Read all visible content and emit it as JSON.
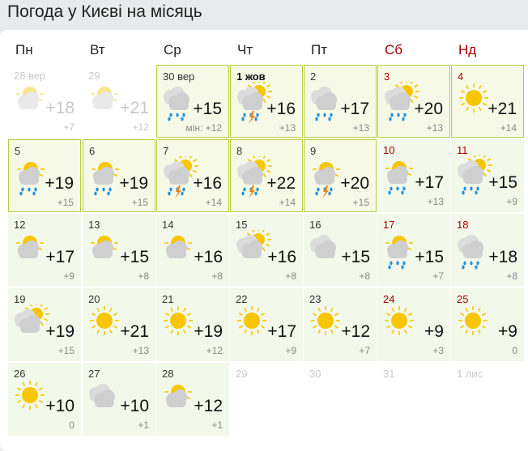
{
  "title": "Погода у Києві на місяць",
  "weekdays": [
    {
      "label": "Пн",
      "weekend": false
    },
    {
      "label": "Вт",
      "weekend": false
    },
    {
      "label": "Ср",
      "weekend": false
    },
    {
      "label": "Чт",
      "weekend": false
    },
    {
      "label": "Пт",
      "weekend": false
    },
    {
      "label": "Сб",
      "weekend": true
    },
    {
      "label": "Нд",
      "weekend": true
    }
  ],
  "colors": {
    "weekend": "#a60000",
    "highlight_border": "#b7cc3a",
    "sun": "#f7c600",
    "cloud": "#cfcfcf",
    "rain": "#1e90e0",
    "thunder": "#f08010"
  },
  "days": [
    {
      "date": "28 вер",
      "max": "+18",
      "min": "+7",
      "icon": "sun-top-cloud",
      "state": "past"
    },
    {
      "date": "29",
      "max": "+21",
      "min": "+12",
      "icon": "sun-top-cloud",
      "state": "past"
    },
    {
      "date": "30 вер",
      "max": "+15",
      "min": "мін: +12",
      "icon": "clouds-rain",
      "state": "hl"
    },
    {
      "date": "1 жов",
      "max": "+16",
      "min": "+13",
      "icon": "sun-right-clouds-rain-thunder",
      "state": "hl",
      "bold": true
    },
    {
      "date": "2",
      "max": "+17",
      "min": "+13",
      "icon": "clouds-rain",
      "state": "hl"
    },
    {
      "date": "3",
      "max": "+20",
      "min": "+13",
      "icon": "sun-right-clouds-rain",
      "state": "hl",
      "weekend": true
    },
    {
      "date": "4",
      "max": "+21",
      "min": "+14",
      "icon": "sun",
      "state": "hl",
      "weekend": true
    },
    {
      "date": "5",
      "max": "+19",
      "min": "+15",
      "icon": "sun-top-cloud-rain",
      "state": "hl"
    },
    {
      "date": "6",
      "max": "+19",
      "min": "+15",
      "icon": "sun-top-cloud-rain",
      "state": "hl"
    },
    {
      "date": "7",
      "max": "+16",
      "min": "+14",
      "icon": "sun-right-clouds-rain-thunder",
      "state": "hl"
    },
    {
      "date": "8",
      "max": "+22",
      "min": "+14",
      "icon": "sun-right-clouds-rain-thunder",
      "state": "hl"
    },
    {
      "date": "9",
      "max": "+20",
      "min": "+15",
      "icon": "sun-top-cloud-rain-thunder",
      "state": "hl"
    },
    {
      "date": "10",
      "max": "+17",
      "min": "+13",
      "icon": "sun-top-cloud-rain",
      "weekend": true
    },
    {
      "date": "11",
      "max": "+15",
      "min": "+9",
      "icon": "sun-right-clouds-rain",
      "weekend": true
    },
    {
      "date": "12",
      "max": "+17",
      "min": "+9",
      "icon": "sun-top-cloud"
    },
    {
      "date": "13",
      "max": "+15",
      "min": "+8",
      "icon": "sun-top-cloud"
    },
    {
      "date": "14",
      "max": "+16",
      "min": "+8",
      "icon": "sun-top-cloud"
    },
    {
      "date": "15",
      "max": "+16",
      "min": "+8",
      "icon": "sun-right-clouds"
    },
    {
      "date": "16",
      "max": "+15",
      "min": "+8",
      "icon": "clouds"
    },
    {
      "date": "17",
      "max": "+15",
      "min": "+7",
      "icon": "sun-top-cloud-rain",
      "weekend": true
    },
    {
      "date": "18",
      "max": "+18",
      "min": "+8",
      "icon": "clouds-rain",
      "weekend": true
    },
    {
      "date": "19",
      "max": "+19",
      "min": "+15",
      "icon": "sun-right-clouds"
    },
    {
      "date": "20",
      "max": "+21",
      "min": "+13",
      "icon": "sun"
    },
    {
      "date": "21",
      "max": "+19",
      "min": "+12",
      "icon": "sun"
    },
    {
      "date": "22",
      "max": "+17",
      "min": "+9",
      "icon": "sun"
    },
    {
      "date": "23",
      "max": "+12",
      "min": "+7",
      "icon": "sun"
    },
    {
      "date": "24",
      "max": "+9",
      "min": "+3",
      "icon": "sun",
      "weekend": true
    },
    {
      "date": "25",
      "max": "+9",
      "min": "0",
      "icon": "sun",
      "weekend": true
    },
    {
      "date": "26",
      "max": "+10",
      "min": "0",
      "icon": "sun"
    },
    {
      "date": "27",
      "max": "+10",
      "min": "+1",
      "icon": "clouds"
    },
    {
      "date": "28",
      "max": "+12",
      "min": "+1",
      "icon": "sun-top-cloud"
    },
    {
      "date": "29",
      "state": "empty"
    },
    {
      "date": "30",
      "state": "empty"
    },
    {
      "date": "31",
      "state": "empty"
    },
    {
      "date": "1 лис",
      "state": "empty"
    }
  ]
}
